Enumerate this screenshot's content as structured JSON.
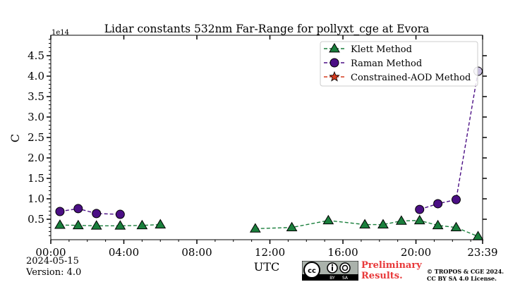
{
  "chart_data": {
    "type": "line",
    "title": "Lidar constants 532nm Far-Range for pollyxt_cge at Evora",
    "xlabel": "UTC",
    "ylabel": "C",
    "y_multiplier": "1e14",
    "xlim_hours": [
      0,
      23.65
    ],
    "ylim": [
      0,
      5.0
    ],
    "x_ticks": [
      {
        "h": 0,
        "label": "00:00"
      },
      {
        "h": 4,
        "label": "04:00"
      },
      {
        "h": 8,
        "label": "08:00"
      },
      {
        "h": 12,
        "label": "12:00"
      },
      {
        "h": 16,
        "label": "16:00"
      },
      {
        "h": 20,
        "label": "20:00"
      },
      {
        "h": 23.65,
        "label": "23:39"
      }
    ],
    "y_ticks": [
      0.5,
      1.0,
      1.5,
      2.0,
      2.5,
      3.0,
      3.5,
      4.0,
      4.5
    ],
    "y_tick_labels": [
      "0.5",
      "1.0",
      "1.5",
      "2.0",
      "2.5",
      "3.0",
      "3.5",
      "4.0",
      "4.5"
    ],
    "legend_position": "top-right",
    "series": [
      {
        "name": "Klett Method",
        "marker": "triangle",
        "color": "#1a7f3c",
        "line_style": "dashed",
        "points": [
          {
            "x": 0.5,
            "y": 0.36
          },
          {
            "x": 1.5,
            "y": 0.35
          },
          {
            "x": 2.5,
            "y": 0.34
          },
          {
            "x": 3.8,
            "y": 0.34
          },
          {
            "x": 5.0,
            "y": 0.35
          },
          {
            "x": 6.0,
            "y": 0.37
          }
        ],
        "points_b": [
          {
            "x": 11.2,
            "y": 0.27
          },
          {
            "x": 13.2,
            "y": 0.3
          },
          {
            "x": 15.2,
            "y": 0.47
          },
          {
            "x": 17.2,
            "y": 0.37
          },
          {
            "x": 18.2,
            "y": 0.37
          },
          {
            "x": 19.2,
            "y": 0.46
          },
          {
            "x": 20.2,
            "y": 0.47
          },
          {
            "x": 21.2,
            "y": 0.35
          },
          {
            "x": 22.2,
            "y": 0.3
          },
          {
            "x": 23.4,
            "y": 0.08
          }
        ]
      },
      {
        "name": "Raman Method",
        "marker": "circle",
        "color": "#4b0f85",
        "line_style": "dashed",
        "points": [
          {
            "x": 0.5,
            "y": 0.69
          },
          {
            "x": 1.5,
            "y": 0.76
          },
          {
            "x": 2.5,
            "y": 0.64
          },
          {
            "x": 3.8,
            "y": 0.62
          }
        ],
        "points_b": [
          {
            "x": 20.2,
            "y": 0.74
          },
          {
            "x": 21.2,
            "y": 0.88
          },
          {
            "x": 22.2,
            "y": 0.98
          },
          {
            "x": 23.4,
            "y": 4.12
          }
        ]
      },
      {
        "name": "Constrained-AOD Method",
        "marker": "star",
        "color": "#d63b1f",
        "line_style": "dashed",
        "points": [],
        "points_b": []
      }
    ]
  },
  "footer": {
    "date": "2024-05-15",
    "version": "Version: 4.0",
    "preliminary_line1": "Preliminary",
    "preliminary_line2": "Results.",
    "copyright_line1": "© TROPOS & CGE 2024.",
    "copyright_line2": "CC BY SA 4.0 License.",
    "cc_text": "cc",
    "cc_by": "BY",
    "cc_sa": "SA"
  }
}
